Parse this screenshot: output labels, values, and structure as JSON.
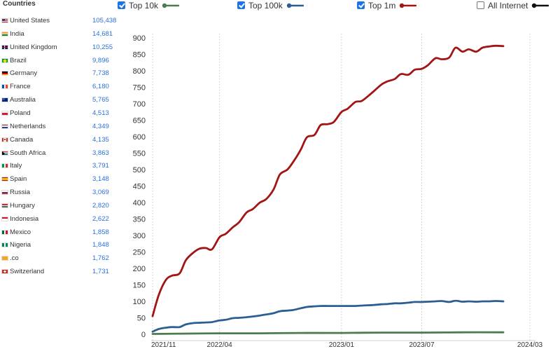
{
  "sidebar": {
    "heading": "Countries",
    "countries": [
      {
        "flag": "us-flag-icon",
        "name": "United States",
        "count": "105,438"
      },
      {
        "flag": "in-flag-icon",
        "name": "India",
        "count": "14,681"
      },
      {
        "flag": "gb-flag-icon",
        "name": "United Kingdom",
        "count": "10,255"
      },
      {
        "flag": "br-flag-icon",
        "name": "Brazil",
        "count": "9,896"
      },
      {
        "flag": "de-flag-icon",
        "name": "Germany",
        "count": "7,738"
      },
      {
        "flag": "fr-flag-icon",
        "name": "France",
        "count": "6,180"
      },
      {
        "flag": "au-flag-icon",
        "name": "Australia",
        "count": "5,765"
      },
      {
        "flag": "pl-flag-icon",
        "name": "Poland",
        "count": "4,513"
      },
      {
        "flag": "nl-flag-icon",
        "name": "Netherlands",
        "count": "4,349"
      },
      {
        "flag": "ca-flag-icon",
        "name": "Canada",
        "count": "4,135"
      },
      {
        "flag": "za-flag-icon",
        "name": "South Africa",
        "count": "3,863"
      },
      {
        "flag": "it-flag-icon",
        "name": "Italy",
        "count": "3,791"
      },
      {
        "flag": "es-flag-icon",
        "name": "Spain",
        "count": "3,148"
      },
      {
        "flag": "ru-flag-icon",
        "name": "Russia",
        "count": "3,069"
      },
      {
        "flag": "hu-flag-icon",
        "name": "Hungary",
        "count": "2,820"
      },
      {
        "flag": "id-flag-icon",
        "name": "Indonesia",
        "count": "2,622"
      },
      {
        "flag": "mx-flag-icon",
        "name": "Mexico",
        "count": "1,858"
      },
      {
        "flag": "ng-flag-icon",
        "name": "Nigeria",
        "count": "1,848"
      },
      {
        "flag": "co-domain-icon",
        "name": ".co",
        "count": "1,762"
      },
      {
        "flag": "ch-flag-icon",
        "name": "Switzerland",
        "count": "1,731"
      }
    ]
  },
  "legend": [
    {
      "label": "Top 10k",
      "checked": true,
      "color": "#4a7c4e"
    },
    {
      "label": "Top 100k",
      "checked": true,
      "color": "#2b5f94"
    },
    {
      "label": "Top 1m",
      "checked": true,
      "color": "#a31515"
    },
    {
      "label": "All Internet",
      "checked": false,
      "color": "#111111"
    }
  ],
  "chart_data": {
    "type": "line",
    "x_ticks": [
      "2021/11",
      "2022/04",
      "2023/01",
      "2023/07",
      "2024/03"
    ],
    "x_range": [
      "2021/11",
      "2024/03"
    ],
    "y_ticks": [
      "0",
      "50",
      "100",
      "150",
      "200",
      "250",
      "300",
      "350",
      "400",
      "450",
      "500",
      "550",
      "600",
      "650",
      "700",
      "750",
      "800",
      "850",
      "900"
    ],
    "ylim": [
      0,
      900
    ],
    "grid": "vertical dotted",
    "series": [
      {
        "name": "Top 1m",
        "color": "#a31515",
        "points": [
          [
            "2021/11/01",
            55
          ],
          [
            "2021/11/15",
            120
          ],
          [
            "2021/12/01",
            165
          ],
          [
            "2021/12/15",
            178
          ],
          [
            "2022/01/01",
            185
          ],
          [
            "2022/01/15",
            225
          ],
          [
            "2022/02/01",
            248
          ],
          [
            "2022/02/15",
            260
          ],
          [
            "2022/03/01",
            262
          ],
          [
            "2022/03/15",
            258
          ],
          [
            "2022/04/01",
            295
          ],
          [
            "2022/04/15",
            305
          ],
          [
            "2022/05/01",
            325
          ],
          [
            "2022/05/15",
            340
          ],
          [
            "2022/06/01",
            370
          ],
          [
            "2022/06/15",
            380
          ],
          [
            "2022/07/01",
            400
          ],
          [
            "2022/07/15",
            410
          ],
          [
            "2022/08/01",
            440
          ],
          [
            "2022/08/15",
            485
          ],
          [
            "2022/09/01",
            500
          ],
          [
            "2022/09/15",
            525
          ],
          [
            "2022/10/01",
            560
          ],
          [
            "2022/10/15",
            598
          ],
          [
            "2022/11/01",
            605
          ],
          [
            "2022/11/15",
            635
          ],
          [
            "2022/12/01",
            638
          ],
          [
            "2022/12/15",
            645
          ],
          [
            "2023/01/01",
            675
          ],
          [
            "2023/01/15",
            685
          ],
          [
            "2023/02/01",
            705
          ],
          [
            "2023/02/15",
            708
          ],
          [
            "2023/03/01",
            722
          ],
          [
            "2023/03/15",
            738
          ],
          [
            "2023/04/01",
            758
          ],
          [
            "2023/04/15",
            768
          ],
          [
            "2023/05/01",
            775
          ],
          [
            "2023/05/15",
            790
          ],
          [
            "2023/06/01",
            788
          ],
          [
            "2023/06/15",
            803
          ],
          [
            "2023/07/01",
            806
          ],
          [
            "2023/07/15",
            817
          ],
          [
            "2023/08/01",
            838
          ],
          [
            "2023/08/15",
            835
          ],
          [
            "2023/09/01",
            840
          ],
          [
            "2023/09/15",
            870
          ],
          [
            "2023/10/01",
            858
          ],
          [
            "2023/10/15",
            865
          ],
          [
            "2023/11/01",
            858
          ],
          [
            "2023/11/15",
            870
          ],
          [
            "2023/12/01",
            874
          ],
          [
            "2023/12/15",
            876
          ],
          [
            "2024/01/01",
            875
          ]
        ]
      },
      {
        "name": "Top 100k",
        "color": "#2b5f94",
        "points": [
          [
            "2021/11/01",
            8
          ],
          [
            "2021/11/15",
            16
          ],
          [
            "2021/12/01",
            20
          ],
          [
            "2021/12/15",
            22
          ],
          [
            "2022/01/01",
            22
          ],
          [
            "2022/01/15",
            30
          ],
          [
            "2022/02/01",
            34
          ],
          [
            "2022/02/15",
            35
          ],
          [
            "2022/03/01",
            36
          ],
          [
            "2022/03/15",
            37
          ],
          [
            "2022/04/01",
            42
          ],
          [
            "2022/04/15",
            44
          ],
          [
            "2022/05/01",
            49
          ],
          [
            "2022/05/15",
            50
          ],
          [
            "2022/06/01",
            52
          ],
          [
            "2022/06/15",
            54
          ],
          [
            "2022/07/01",
            57
          ],
          [
            "2022/07/15",
            60
          ],
          [
            "2022/08/01",
            64
          ],
          [
            "2022/08/15",
            70
          ],
          [
            "2022/09/01",
            72
          ],
          [
            "2022/09/15",
            74
          ],
          [
            "2022/10/01",
            79
          ],
          [
            "2022/10/15",
            83
          ],
          [
            "2022/11/01",
            85
          ],
          [
            "2022/11/15",
            86
          ],
          [
            "2022/12/01",
            86
          ],
          [
            "2022/12/15",
            86
          ],
          [
            "2023/01/01",
            86
          ],
          [
            "2023/01/15",
            86
          ],
          [
            "2023/02/01",
            86
          ],
          [
            "2023/02/15",
            87
          ],
          [
            "2023/03/01",
            88
          ],
          [
            "2023/03/15",
            89
          ],
          [
            "2023/04/01",
            91
          ],
          [
            "2023/04/15",
            92
          ],
          [
            "2023/05/01",
            94
          ],
          [
            "2023/05/15",
            94
          ],
          [
            "2023/06/01",
            96
          ],
          [
            "2023/06/15",
            98
          ],
          [
            "2023/07/01",
            98
          ],
          [
            "2023/07/15",
            99
          ],
          [
            "2023/08/01",
            100
          ],
          [
            "2023/08/15",
            101
          ],
          [
            "2023/09/01",
            98
          ],
          [
            "2023/09/15",
            102
          ],
          [
            "2023/10/01",
            99
          ],
          [
            "2023/10/15",
            100
          ],
          [
            "2023/11/01",
            99
          ],
          [
            "2023/11/15",
            100
          ],
          [
            "2023/12/01",
            100
          ],
          [
            "2023/12/15",
            101
          ],
          [
            "2024/01/01",
            100
          ]
        ]
      },
      {
        "name": "Top 10k",
        "color": "#4a7c4e",
        "points": [
          [
            "2021/11/01",
            1
          ],
          [
            "2022/01/01",
            2
          ],
          [
            "2022/04/01",
            3
          ],
          [
            "2022/07/01",
            3
          ],
          [
            "2022/10/01",
            4
          ],
          [
            "2023/01/01",
            4
          ],
          [
            "2023/04/01",
            5
          ],
          [
            "2023/07/01",
            5
          ],
          [
            "2023/10/01",
            6
          ],
          [
            "2024/01/01",
            6
          ]
        ]
      }
    ]
  }
}
